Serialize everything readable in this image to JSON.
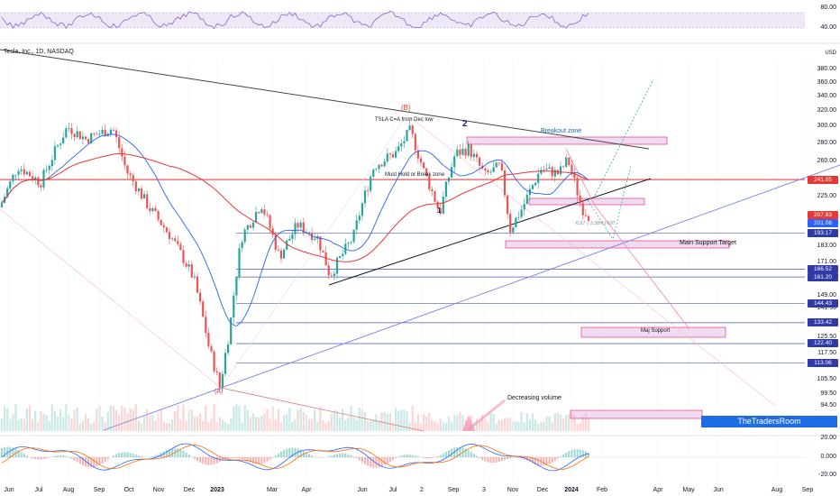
{
  "title": "Tesla, Inc., 1D, NASDAQ",
  "colors": {
    "up": "#26a69a",
    "down": "#ef5350",
    "ma_fast": "#2962ff",
    "ma_slow": "#e53935",
    "trend": "#131722",
    "zone_fill": "#e1bee7",
    "zone_stroke": "#e91e63",
    "blue_line": "#7b7ff0",
    "arrow_green": "#26a69a",
    "arrow_red": "#f48fb1",
    "brand": "#1e6be6"
  },
  "chart_data": {
    "type": "candlestick",
    "symbol": "TSLA",
    "interval": "1D",
    "ylim": [
      89.5,
      385
    ],
    "y_scale": "log",
    "price_ticks": [
      "380.00",
      "360.00",
      "340.00",
      "320.00",
      "300.00",
      "280.00",
      "260.00",
      "241.05",
      "225.00",
      "207.83",
      "201.08",
      "193.17",
      "183.00",
      "171.00",
      "166.52",
      "161.20",
      "149.00",
      "144.43",
      "141.50",
      "133.42",
      "125.50",
      "122.40",
      "117.50",
      "113.06",
      "105.50",
      "99.50",
      "94.50",
      "89.50"
    ],
    "price_levels": [
      {
        "value": 241.05,
        "label": "241.05",
        "color": "#e53935",
        "style": "solid"
      },
      {
        "value": 207.83,
        "label": "207.83",
        "color": "#e53935",
        "style": "tag"
      },
      {
        "value": 201.08,
        "label": "201.08",
        "color": "#2962ff",
        "style": "tag"
      },
      {
        "value": 193.17,
        "label": "193.17",
        "color": "#2f3aa8",
        "style": "solid"
      },
      {
        "value": 166.52,
        "label": "166.52",
        "color": "#2f3aa8",
        "style": "solid"
      },
      {
        "value": 161.2,
        "label": "161.20",
        "color": "#2f3aa8",
        "style": "solid"
      },
      {
        "value": 144.43,
        "label": "144.43",
        "color": "#2f3aa8",
        "style": "solid"
      },
      {
        "value": 133.42,
        "label": "133.42",
        "color": "#2f3aa8",
        "style": "solid"
      },
      {
        "value": 122.4,
        "label": "122.40",
        "color": "#2f3aa8",
        "style": "solid"
      },
      {
        "value": 113.06,
        "label": "113.06",
        "color": "#2f3aa8",
        "style": "solid"
      }
    ],
    "x_labels": [
      "Jun",
      "Jul",
      "Aug",
      "Sep",
      "Oct",
      "Nov",
      "Dec",
      "2023",
      "Mar",
      "Apr",
      "Jun",
      "Jul",
      "2",
      "Sep",
      "3",
      "Nov",
      "Dec",
      "2024",
      "Feb",
      "Apr",
      "May",
      "Jun",
      "Aug",
      "Sep"
    ],
    "rsi_ticks": [
      "80.00",
      "40.00"
    ],
    "macd_ticks": [
      "20.00",
      "0.000",
      "-20.00"
    ],
    "annotations": {
      "wave_b": "(B)",
      "wave_a": "(A)",
      "wave_2": "2",
      "wave_1": "1",
      "tsla_ca": "TSLA C=A from Dec low",
      "must_hold": "Must Hold or Break zone",
      "breakout": "Breakout zone",
      "main_support": "Main Support Target",
      "maj_support": "Maj Support",
      "decreasing_volume": "Decreasing volume",
      "measure": "-6.97 (-3.38%) 697",
      "brand": "TheTradersRoom",
      "usd": "USD"
    },
    "last_price": 201.08
  }
}
